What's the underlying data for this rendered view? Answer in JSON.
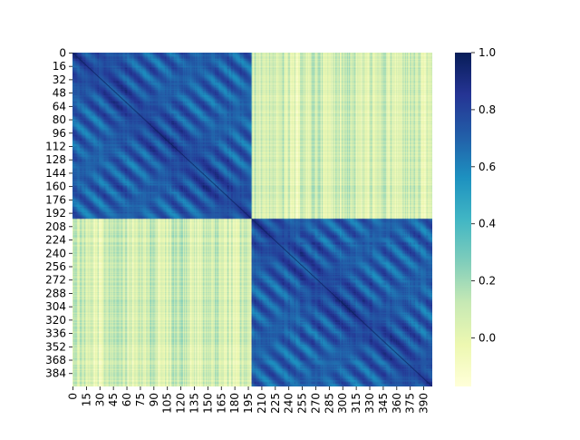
{
  "chart_data": {
    "type": "heatmap",
    "title": "",
    "xlabel": "",
    "ylabel": "",
    "n_rows": 400,
    "n_cols": 400,
    "block_boundary": 199,
    "within_block_range": [
      0.55,
      1.0
    ],
    "between_block_range": [
      -0.15,
      0.35
    ],
    "value_range": [
      -0.17,
      1.0
    ],
    "colormap": "YlGnBu",
    "color_stops": [
      "#ffffd9",
      "#edf8b1",
      "#c7e9b4",
      "#7fcdbb",
      "#41b6c4",
      "#1d91c0",
      "#225ea8",
      "#253494",
      "#081d58"
    ],
    "x_tick_labels": [
      "0",
      "15",
      "30",
      "45",
      "60",
      "75",
      "90",
      "105",
      "120",
      "135",
      "150",
      "165",
      "180",
      "195",
      "210",
      "225",
      "240",
      "255",
      "270",
      "285",
      "300",
      "315",
      "330",
      "345",
      "360",
      "375",
      "390"
    ],
    "y_tick_labels": [
      "0",
      "16",
      "32",
      "48",
      "64",
      "80",
      "96",
      "112",
      "128",
      "144",
      "160",
      "176",
      "192",
      "208",
      "224",
      "240",
      "256",
      "272",
      "288",
      "304",
      "320",
      "336",
      "352",
      "368",
      "384"
    ],
    "colorbar": {
      "ticks": [
        0.0,
        0.2,
        0.4,
        0.6,
        0.8,
        1.0
      ],
      "tick_labels": [
        "0.0",
        "0.2",
        "0.4",
        "0.6",
        "0.8",
        "1.0"
      ]
    }
  }
}
